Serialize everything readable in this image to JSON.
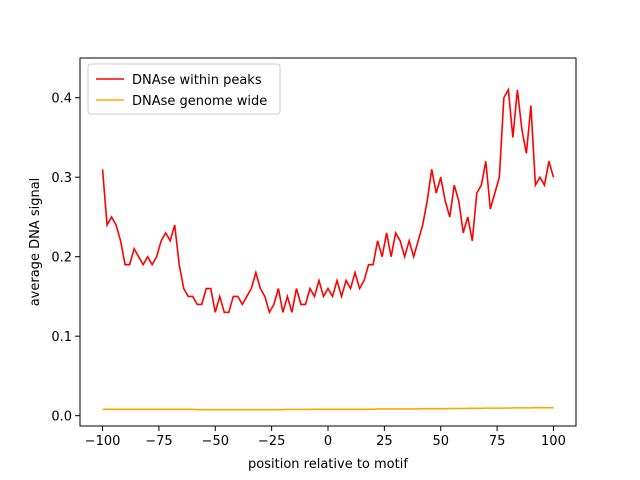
{
  "chart_data": {
    "type": "line",
    "x_label": "position relative to motif",
    "y_label": "average DNA signal",
    "x": [
      -100,
      -98,
      -96,
      -94,
      -92,
      -90,
      -88,
      -86,
      -84,
      -82,
      -80,
      -78,
      -76,
      -74,
      -72,
      -70,
      -68,
      -66,
      -64,
      -62,
      -60,
      -58,
      -56,
      -54,
      -52,
      -50,
      -48,
      -46,
      -44,
      -42,
      -40,
      -38,
      -36,
      -34,
      -32,
      -30,
      -28,
      -26,
      -24,
      -22,
      -20,
      -18,
      -16,
      -14,
      -12,
      -10,
      -8,
      -6,
      -4,
      -2,
      0,
      2,
      4,
      6,
      8,
      10,
      12,
      14,
      16,
      18,
      20,
      22,
      24,
      26,
      28,
      30,
      32,
      34,
      36,
      38,
      40,
      42,
      44,
      46,
      48,
      50,
      52,
      54,
      56,
      58,
      60,
      62,
      64,
      66,
      68,
      70,
      72,
      74,
      76,
      78,
      80,
      82,
      84,
      86,
      88,
      90,
      92,
      94,
      96,
      98,
      100
    ],
    "series": [
      {
        "name": "DNAse within peaks",
        "color": "#ff0000",
        "values": [
          0.31,
          0.24,
          0.25,
          0.24,
          0.22,
          0.19,
          0.19,
          0.21,
          0.2,
          0.19,
          0.2,
          0.19,
          0.2,
          0.22,
          0.23,
          0.22,
          0.24,
          0.19,
          0.16,
          0.15,
          0.15,
          0.14,
          0.14,
          0.16,
          0.16,
          0.13,
          0.15,
          0.13,
          0.13,
          0.15,
          0.15,
          0.14,
          0.15,
          0.16,
          0.18,
          0.16,
          0.15,
          0.13,
          0.14,
          0.16,
          0.13,
          0.15,
          0.13,
          0.16,
          0.14,
          0.14,
          0.16,
          0.15,
          0.17,
          0.15,
          0.16,
          0.15,
          0.17,
          0.15,
          0.17,
          0.16,
          0.18,
          0.16,
          0.17,
          0.19,
          0.19,
          0.22,
          0.2,
          0.23,
          0.2,
          0.23,
          0.22,
          0.2,
          0.22,
          0.2,
          0.22,
          0.24,
          0.27,
          0.31,
          0.28,
          0.3,
          0.27,
          0.25,
          0.29,
          0.27,
          0.23,
          0.25,
          0.22,
          0.28,
          0.29,
          0.32,
          0.26,
          0.28,
          0.3,
          0.4,
          0.41,
          0.35,
          0.41,
          0.36,
          0.33,
          0.39,
          0.29,
          0.3,
          0.29,
          0.32,
          0.3
        ]
      },
      {
        "name": "DNAse genome wide",
        "color": "#ffa500",
        "values": [
          0.008,
          0.008,
          0.008,
          0.008,
          0.008,
          0.008,
          0.008,
          0.008,
          0.008,
          0.008,
          0.008,
          0.008,
          0.008,
          0.008,
          0.008,
          0.008,
          0.008,
          0.008,
          0.008,
          0.008,
          0.008,
          0.0075,
          0.0075,
          0.0075,
          0.0075,
          0.0075,
          0.0075,
          0.0075,
          0.0075,
          0.0075,
          0.0075,
          0.0075,
          0.0075,
          0.0075,
          0.0075,
          0.0075,
          0.0075,
          0.0075,
          0.0075,
          0.0075,
          0.0075,
          0.0078,
          0.0078,
          0.0078,
          0.0078,
          0.0078,
          0.0078,
          0.008,
          0.008,
          0.008,
          0.008,
          0.008,
          0.008,
          0.008,
          0.008,
          0.008,
          0.008,
          0.008,
          0.008,
          0.008,
          0.008,
          0.0085,
          0.0085,
          0.0085,
          0.0085,
          0.0085,
          0.0085,
          0.0085,
          0.0085,
          0.0085,
          0.0085,
          0.0088,
          0.0088,
          0.0088,
          0.0088,
          0.0088,
          0.0088,
          0.009,
          0.009,
          0.009,
          0.009,
          0.0092,
          0.0092,
          0.0092,
          0.0092,
          0.0095,
          0.0095,
          0.0095,
          0.0095,
          0.0095,
          0.0095,
          0.0098,
          0.0098,
          0.0098,
          0.0098,
          0.0098,
          0.01,
          0.01,
          0.01,
          0.01,
          0.01
        ]
      }
    ],
    "xlim": [
      -110,
      110
    ],
    "ylim": [
      -0.013,
      0.45
    ],
    "xticks": [
      {
        "value": -100,
        "label": "−100"
      },
      {
        "value": -75,
        "label": "−75"
      },
      {
        "value": -50,
        "label": "−50"
      },
      {
        "value": -25,
        "label": "−25"
      },
      0,
      25,
      50,
      75,
      100
    ],
    "yticks": [
      {
        "value": 0,
        "label": "0.0"
      },
      0.1,
      0.2,
      0.3,
      0.4
    ],
    "legend": "upper left"
  }
}
